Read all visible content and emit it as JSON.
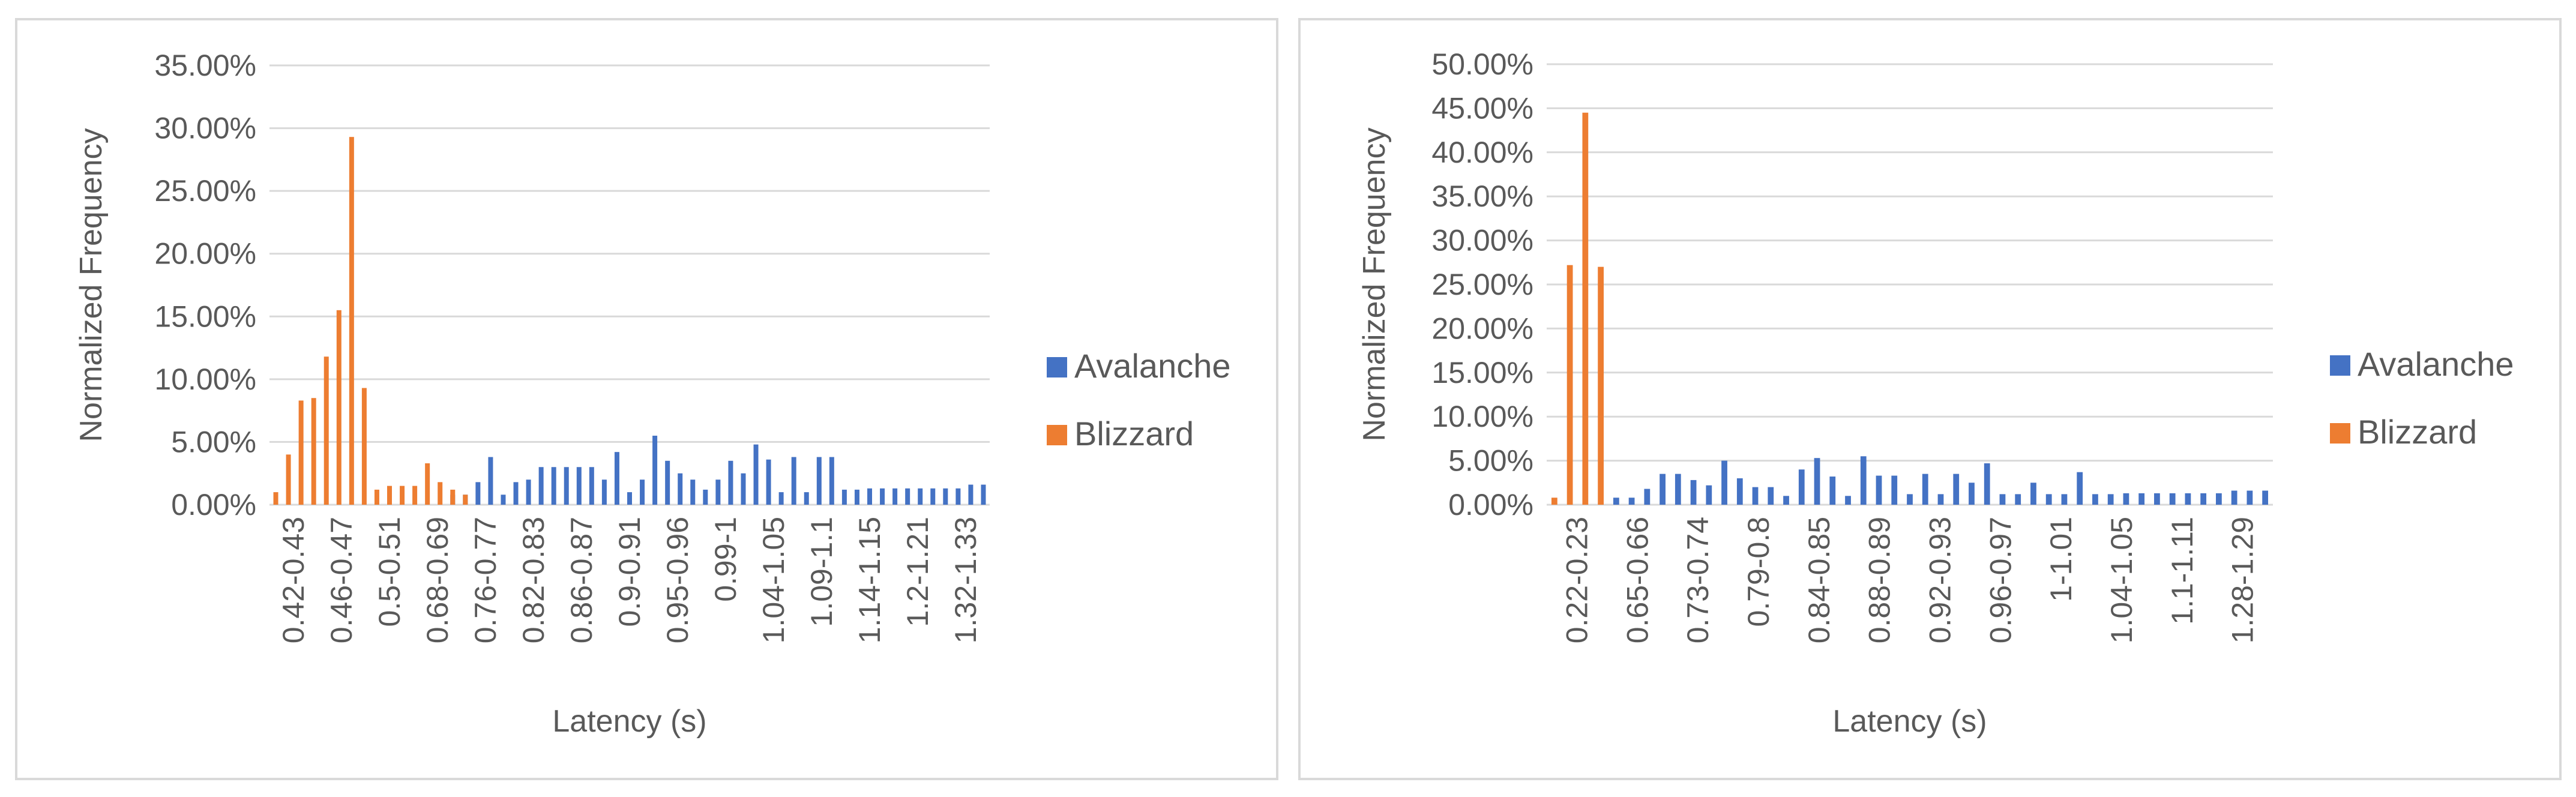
{
  "chart_data": [
    {
      "type": "bar",
      "xlabel": "Latency (s)",
      "ylabel": "Normalized Frequency",
      "ylim": [
        0,
        0.35
      ],
      "y_ticks": [
        "0.00%",
        "5.00%",
        "10.00%",
        "15.00%",
        "20.00%",
        "25.00%",
        "30.00%",
        "35.00%"
      ],
      "x_tick_labels": [
        "0.42-0.43",
        "0.46-0.47",
        "0.5-0.51",
        "0.68-0.69",
        "0.76-0.77",
        "0.82-0.83",
        "0.86-0.87",
        "0.9-0.91",
        "0.95-0.96",
        "0.99-1",
        "1.04-1.05",
        "1.09-1.1",
        "1.14-1.15",
        "1.2-1.21",
        "1.32-1.33"
      ],
      "legend": {
        "position": "right"
      },
      "grid": true,
      "series": [
        {
          "name": "Avalanche",
          "color": "#4472c4",
          "values": [
            0,
            0,
            0,
            0,
            0,
            0,
            0,
            0,
            0,
            0,
            0,
            0,
            0,
            0,
            0.008,
            0.008,
            0.018,
            0.038,
            0.008,
            0.018,
            0.02,
            0.03,
            0.03,
            0.03,
            0.03,
            0.03,
            0.02,
            0.042,
            0.01,
            0.02,
            0.055,
            0.035,
            0.025,
            0.02,
            0.012,
            0.02,
            0.035,
            0.025,
            0.048,
            0.036,
            0.01,
            0.038,
            0.01,
            0.038,
            0.038,
            0.012,
            0.012,
            0.013,
            0.013,
            0.013,
            0.013,
            0.013,
            0.013,
            0.013,
            0.013,
            0.016,
            0.016
          ]
        },
        {
          "name": "Blizzard",
          "color": "#ed7d31",
          "values": [
            0.01,
            0.04,
            0.083,
            0.085,
            0.118,
            0.155,
            0.293,
            0.093,
            0.012,
            0.015,
            0.015,
            0.015,
            0.033,
            0.018,
            0.012,
            0.008,
            0,
            0,
            0,
            0,
            0,
            0,
            0,
            0,
            0,
            0,
            0,
            0,
            0,
            0,
            0,
            0,
            0,
            0,
            0,
            0,
            0,
            0,
            0,
            0,
            0,
            0,
            0,
            0,
            0,
            0,
            0,
            0,
            0,
            0,
            0,
            0,
            0,
            0,
            0,
            0,
            0
          ]
        }
      ]
    },
    {
      "type": "bar",
      "xlabel": "Latency (s)",
      "ylabel": "Normalized Frequency",
      "ylim": [
        0,
        0.5
      ],
      "y_ticks": [
        "0.00%",
        "5.00%",
        "10.00%",
        "15.00%",
        "20.00%",
        "25.00%",
        "30.00%",
        "35.00%",
        "40.00%",
        "45.00%",
        "50.00%"
      ],
      "x_tick_labels": [
        "0.22-0.23",
        "0.65-0.66",
        "0.73-0.74",
        "0.79-0.8",
        "0.84-0.85",
        "0.88-0.89",
        "0.92-0.93",
        "0.96-0.97",
        "1-1.01",
        "1.04-1.05",
        "1.1-1.11",
        "1.28-1.29"
      ],
      "legend": {
        "position": "right"
      },
      "grid": true,
      "series": [
        {
          "name": "Avalanche",
          "color": "#4472c4",
          "values": [
            0,
            0,
            0,
            0,
            0.008,
            0.008,
            0.018,
            0.035,
            0.035,
            0.028,
            0.022,
            0.05,
            0.03,
            0.02,
            0.02,
            0.01,
            0.04,
            0.053,
            0.032,
            0.01,
            0.055,
            0.033,
            0.033,
            0.012,
            0.035,
            0.012,
            0.035,
            0.025,
            0.047,
            0.012,
            0.012,
            0.025,
            0.012,
            0.012,
            0.037,
            0.012,
            0.012,
            0.013,
            0.013,
            0.013,
            0.013,
            0.013,
            0.013,
            0.013,
            0.016,
            0.016,
            0.016
          ]
        },
        {
          "name": "Blizzard",
          "color": "#ed7d31",
          "values": [
            0.008,
            0.272,
            0.445,
            0.27,
            0,
            0,
            0,
            0,
            0,
            0,
            0,
            0,
            0,
            0,
            0,
            0,
            0,
            0,
            0,
            0,
            0,
            0,
            0,
            0,
            0,
            0,
            0,
            0,
            0,
            0,
            0,
            0,
            0,
            0,
            0,
            0,
            0,
            0,
            0,
            0,
            0,
            0,
            0,
            0,
            0,
            0,
            0
          ]
        }
      ]
    }
  ]
}
